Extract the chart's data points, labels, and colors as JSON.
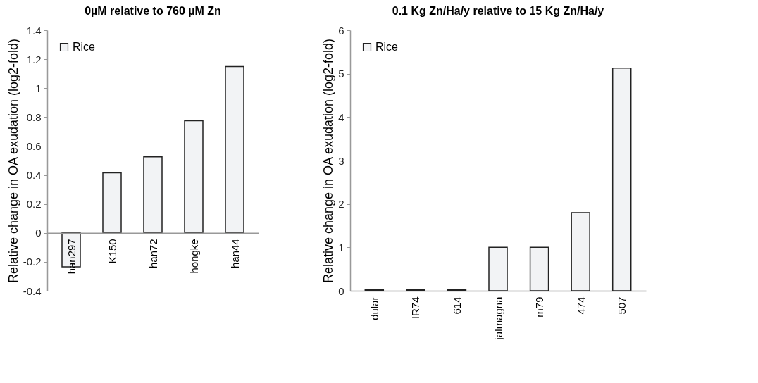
{
  "chart_data": [
    {
      "type": "bar",
      "title": "0µM  relative to 760 µM Zn",
      "ylabel": "Relative change in OA exudation (log2-fold)",
      "categories": [
        "han297",
        "K150",
        "han72",
        "hongke",
        "han44"
      ],
      "series": [
        {
          "name": "Rice",
          "color": "#f2f3f5",
          "values": [
            -0.235,
            0.415,
            0.525,
            0.775,
            1.15
          ]
        }
      ],
      "ylim": [
        -0.4,
        1.4
      ],
      "yticks": [
        -0.4,
        -0.2,
        0,
        0.2,
        0.4,
        0.6,
        0.8,
        1,
        1.2,
        1.4
      ],
      "legend": "top left"
    },
    {
      "type": "bar",
      "title": "0.1 Kg Zn/Ha/y relative to 15 Kg Zn/Ha/y",
      "ylabel": "Relative change in  OA exudation (log2-fold)",
      "categories": [
        "dular",
        "IR74",
        "614",
        "jalmagna",
        "m79",
        "474",
        "507"
      ],
      "series": [
        {
          "name": "Rice",
          "color": "#f2f3f5",
          "values": [
            0.02,
            0.02,
            0.02,
            1.0,
            1.0,
            1.8,
            5.13
          ]
        }
      ],
      "ylim": [
        0,
        6
      ],
      "yticks": [
        0,
        1,
        2,
        3,
        4,
        5,
        6
      ],
      "legend": "top left"
    }
  ]
}
